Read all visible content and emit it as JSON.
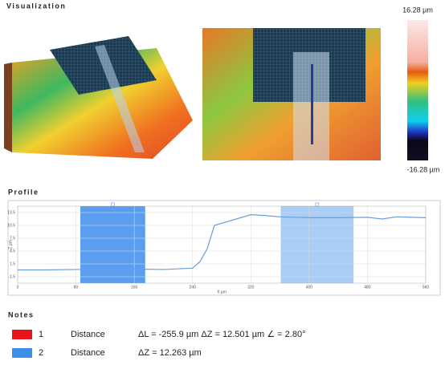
{
  "visualization": {
    "title": "Visualization",
    "scale_max": "16.28 µm",
    "scale_min": "-16.28 µm"
  },
  "profile_title": "Profile",
  "chart_data": {
    "type": "line",
    "xlabel": "X µm",
    "ylabel": "Z µm",
    "x": [
      0,
      40,
      80,
      120,
      160,
      200,
      240,
      250,
      260,
      270,
      280,
      300,
      320,
      340,
      360,
      400,
      440,
      480,
      500,
      520,
      560
    ],
    "series": [
      {
        "color": "#6a9ed8",
        "values": [
          0.1,
          0.1,
          0.2,
          0.2,
          0.3,
          0.2,
          0.5,
          2,
          5,
          10.5,
          11,
          12,
          13,
          12.8,
          12.5,
          12.3,
          12.3,
          12.4,
          12.0,
          12.5,
          12.3
        ]
      }
    ],
    "xlim": [
      0,
      560
    ],
    "xticks": [
      0,
      80,
      160,
      240,
      320,
      400,
      480,
      560
    ],
    "ylim": [
      -3,
      15
    ],
    "yticks": [
      -1.5,
      1.5,
      4.5,
      7.5,
      10.5,
      13.5
    ],
    "grid": true,
    "regions": [
      [
        86,
        175
      ],
      [
        361,
        461
      ]
    ],
    "region_colors": [
      "#5b9ef0",
      "#a9cdf5"
    ]
  },
  "notes": {
    "title": "Notes",
    "rows": [
      {
        "color": "#e8141b",
        "id": "1",
        "type": "Distance",
        "text": "ΔL = -255.9 µm ΔZ = 12.501 µm ∠ = 2.80°"
      },
      {
        "color": "#3b8fe8",
        "id": "2",
        "type": "Distance",
        "text": "ΔZ = 12.263 µm"
      }
    ]
  }
}
